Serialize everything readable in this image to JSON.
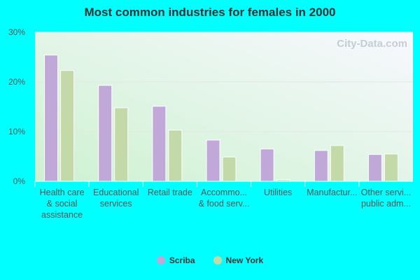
{
  "chart_data": {
    "type": "bar",
    "title": "Most common industries for females in 2000",
    "watermark": "City-Data.com",
    "categories": [
      [
        "Health care",
        "& social",
        "assistance"
      ],
      [
        "Educational",
        "services"
      ],
      [
        "Retail trade"
      ],
      [
        "Accommo...",
        "& food serv..."
      ],
      [
        "Utilities"
      ],
      [
        "Manufactur..."
      ],
      [
        "Other servi...",
        "public adm..."
      ]
    ],
    "series": [
      {
        "name": "Scriba",
        "color": "#c0a8d8",
        "values": [
          25.4,
          19.3,
          15.1,
          8.3,
          6.5,
          6.2,
          5.4
        ]
      },
      {
        "name": "New York",
        "color": "#c4d9a8",
        "values": [
          22.3,
          14.8,
          10.3,
          4.9,
          0.3,
          7.2,
          5.5
        ]
      }
    ],
    "yticks": [
      "0%",
      "10%",
      "20%",
      "30%"
    ],
    "ylim": [
      0,
      30
    ],
    "grid": true,
    "legend": "bottom"
  }
}
